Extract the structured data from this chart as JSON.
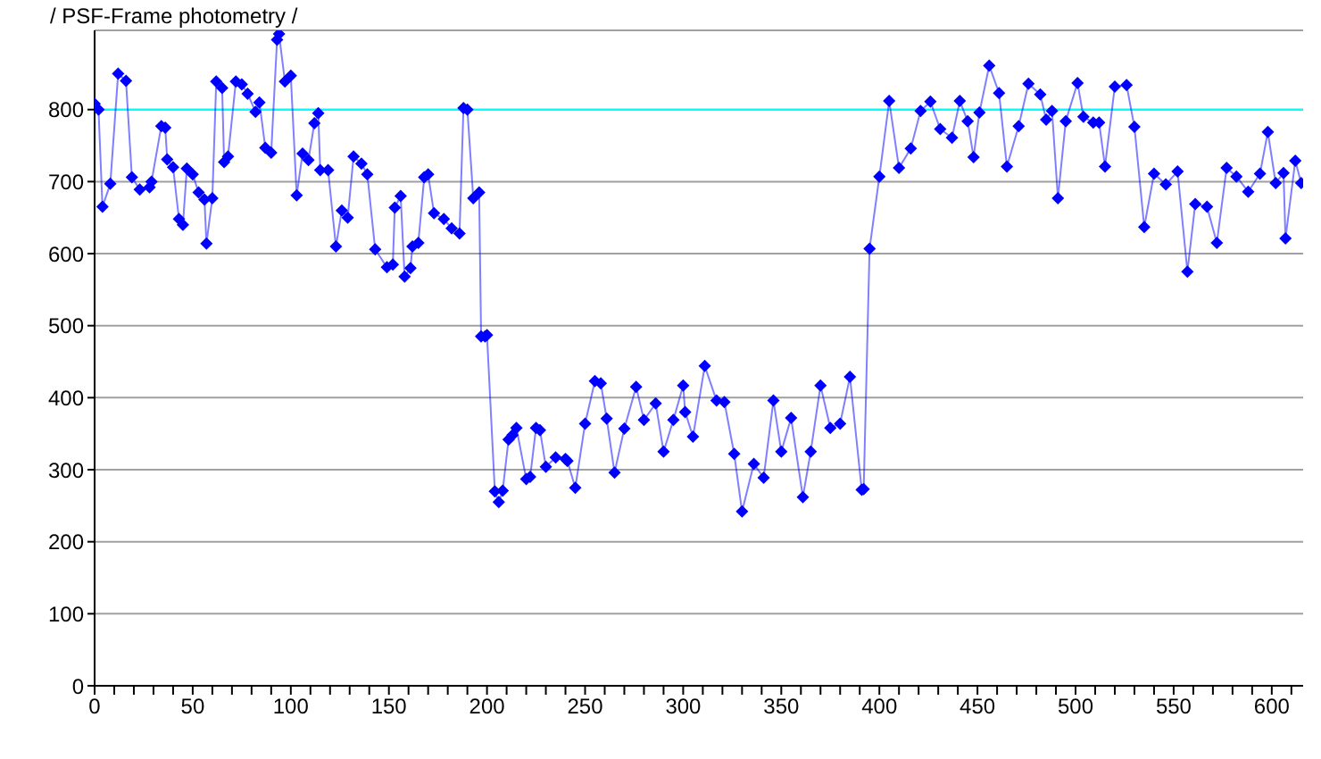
{
  "chart_data": {
    "type": "line",
    "title": "/ PSF-Frame photometry /",
    "x": [
      0,
      2,
      4,
      8,
      12,
      16,
      19,
      23,
      28,
      29,
      34,
      36,
      37,
      40,
      43,
      45,
      47,
      50,
      53,
      56,
      57,
      60,
      62,
      65,
      66,
      68,
      72,
      75,
      78,
      82,
      84,
      87,
      90,
      93,
      94,
      97,
      100,
      103,
      106,
      109,
      112,
      114,
      115,
      119,
      123,
      126,
      129,
      132,
      136,
      139,
      143,
      149,
      152,
      153,
      156,
      158,
      161,
      162,
      165,
      168,
      170,
      173,
      178,
      182,
      186,
      188,
      190,
      193,
      196,
      197,
      199,
      200,
      204,
      206,
      208,
      211,
      213,
      215,
      220,
      222,
      225,
      227,
      230,
      235,
      240,
      241,
      245,
      250,
      255,
      258,
      261,
      265,
      270,
      276,
      280,
      286,
      290,
      295,
      300,
      301,
      305,
      311,
      317,
      321,
      326,
      330,
      336,
      341,
      346,
      350,
      355,
      361,
      365,
      370,
      375,
      380,
      385,
      391,
      392,
      395,
      400,
      405,
      410,
      416,
      421,
      426,
      431,
      437,
      441,
      445,
      448,
      451,
      456,
      461,
      465,
      471,
      476,
      482,
      485,
      488,
      491,
      495,
      501,
      504,
      509,
      512,
      515,
      520,
      526,
      530,
      535,
      540,
      546,
      552,
      557,
      561,
      567,
      572,
      577,
      582,
      588,
      594,
      598,
      602,
      606,
      607,
      612,
      615
    ],
    "series": [
      {
        "color": "#0000ff",
        "values": [
          808,
          800,
          665,
          697,
          850,
          840,
          706,
          689,
          692,
          700,
          777,
          775,
          731,
          720,
          648,
          640,
          718,
          710,
          685,
          675,
          614,
          677,
          839,
          830,
          727,
          735,
          839,
          835,
          822,
          797,
          810,
          747,
          740,
          897,
          905,
          839,
          847,
          681,
          739,
          730,
          781,
          795,
          716,
          716,
          610,
          660,
          650,
          735,
          725,
          710,
          606,
          581,
          585,
          664,
          680,
          568,
          580,
          610,
          615,
          706,
          710,
          656,
          648,
          635,
          628,
          802,
          800,
          677,
          685,
          485,
          485,
          487,
          270,
          255,
          271,
          342,
          348,
          358,
          287,
          290,
          358,
          355,
          304,
          317,
          315,
          312,
          275,
          364,
          423,
          420,
          371,
          296,
          357,
          415,
          369,
          392,
          325,
          369,
          417,
          380,
          346,
          444,
          396,
          394,
          322,
          242,
          308,
          289,
          396,
          325,
          372,
          262,
          325,
          417,
          358,
          364,
          429,
          272,
          273,
          607,
          707,
          812,
          719,
          746,
          798,
          811,
          773,
          761,
          812,
          784,
          734,
          796,
          861,
          823,
          721,
          777,
          836,
          821,
          786,
          798,
          677,
          784,
          837,
          790,
          782,
          782,
          721,
          832,
          834,
          776,
          637,
          711,
          696,
          714,
          575,
          669,
          665,
          615,
          719,
          707,
          686,
          711,
          769,
          698,
          712,
          621,
          729,
          698
        ]
      }
    ],
    "xlim": [
      0,
      616
    ],
    "xticks": [
      0,
      {
        "value": 10,
        "label": null
      },
      {
        "value": 20,
        "label": null
      },
      {
        "value": 30,
        "label": null
      },
      {
        "value": 40,
        "label": null
      },
      50,
      {
        "value": 60,
        "label": null
      },
      {
        "value": 70,
        "label": null
      },
      {
        "value": 80,
        "label": null
      },
      {
        "value": 90,
        "label": null
      },
      100,
      {
        "value": 110,
        "label": null
      },
      {
        "value": 120,
        "label": null
      },
      {
        "value": 130,
        "label": null
      },
      {
        "value": 140,
        "label": null
      },
      150,
      {
        "value": 160,
        "label": null
      },
      {
        "value": 170,
        "label": null
      },
      {
        "value": 180,
        "label": null
      },
      {
        "value": 190,
        "label": null
      },
      200,
      {
        "value": 210,
        "label": null
      },
      {
        "value": 220,
        "label": null
      },
      {
        "value": 230,
        "label": null
      },
      {
        "value": 240,
        "label": null
      },
      250,
      {
        "value": 260,
        "label": null
      },
      {
        "value": 270,
        "label": null
      },
      {
        "value": 280,
        "label": null
      },
      {
        "value": 290,
        "label": null
      },
      300,
      {
        "value": 310,
        "label": null
      },
      {
        "value": 320,
        "label": null
      },
      {
        "value": 330,
        "label": null
      },
      {
        "value": 340,
        "label": null
      },
      350,
      {
        "value": 360,
        "label": null
      },
      {
        "value": 370,
        "label": null
      },
      {
        "value": 380,
        "label": null
      },
      {
        "value": 390,
        "label": null
      },
      400,
      {
        "value": 410,
        "label": null
      },
      {
        "value": 420,
        "label": null
      },
      {
        "value": 430,
        "label": null
      },
      {
        "value": 440,
        "label": null
      },
      450,
      {
        "value": 460,
        "label": null
      },
      {
        "value": 470,
        "label": null
      },
      {
        "value": 480,
        "label": null
      },
      {
        "value": 490,
        "label": null
      },
      500,
      {
        "value": 510,
        "label": null
      },
      {
        "value": 520,
        "label": null
      },
      {
        "value": 530,
        "label": null
      },
      {
        "value": 540,
        "label": null
      },
      550,
      {
        "value": 560,
        "label": null
      },
      {
        "value": 570,
        "label": null
      },
      {
        "value": 580,
        "label": null
      },
      {
        "value": 590,
        "label": null
      },
      600,
      {
        "value": 610,
        "label": null
      }
    ],
    "ylim": [
      0,
      910
    ],
    "yticks": [
      0,
      100,
      200,
      300,
      400,
      500,
      600,
      700,
      800
    ],
    "grid": "y",
    "marker": "diamond",
    "line_style": "solid",
    "legend": false,
    "ref_lines": [
      {
        "axis": "y",
        "value": 800,
        "color": "#00ffff"
      }
    ]
  }
}
